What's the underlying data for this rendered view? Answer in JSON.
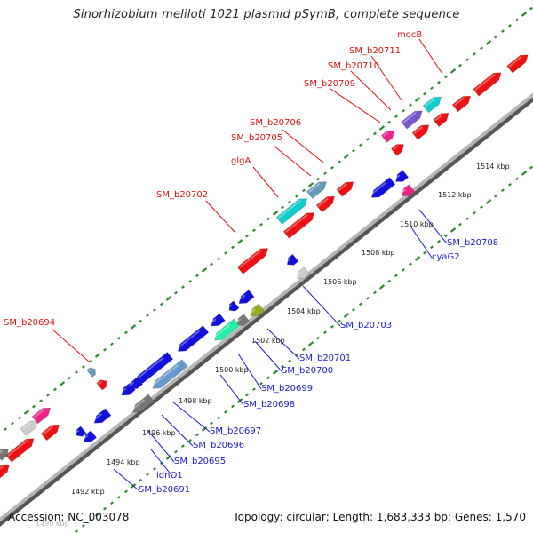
{
  "header": {
    "title": "Sinorhizobium meliloti 1021 plasmid pSymB, complete sequence"
  },
  "footer": {
    "accession": "Accession: NC_003078",
    "topology": "Topology: circular; Length: 1,683,333 bp; Genes: 1,570"
  },
  "scale_labels": [
    "1490 kbp",
    "1492 kbp",
    "1494 kbp",
    "1496 kbp",
    "1498 kbp",
    "1500 kbp",
    "1502 kbp",
    "1504 kbp",
    "1506 kbp",
    "1508 kbp",
    "1510 kbp",
    "1512 kbp",
    "1514 kbp"
  ],
  "forward_labels": [
    "mocB",
    "SM_b20711",
    "SM_b20710",
    "SM_b20709",
    "SM_b20706",
    "SM_b20705",
    "glgA",
    "SM_b20702",
    "SM_b20694"
  ],
  "reverse_labels": [
    "SM_b20708",
    "cyaG2",
    "SM_b20703",
    "SM_b20701",
    "SM_b20700",
    "SM_b20699",
    "SM_b20698",
    "SM_b20697",
    "SM_b20696",
    "SM_b20695",
    "idnO1",
    "SM_b20691"
  ],
  "colors": {
    "forward_label": "#dd1111",
    "reverse_label": "#1a1acc",
    "backbone": "#888888",
    "gc_dots": "#2a8a2a",
    "forward_gene": "#ee1111",
    "reverse_gene": "#1111dd"
  }
}
